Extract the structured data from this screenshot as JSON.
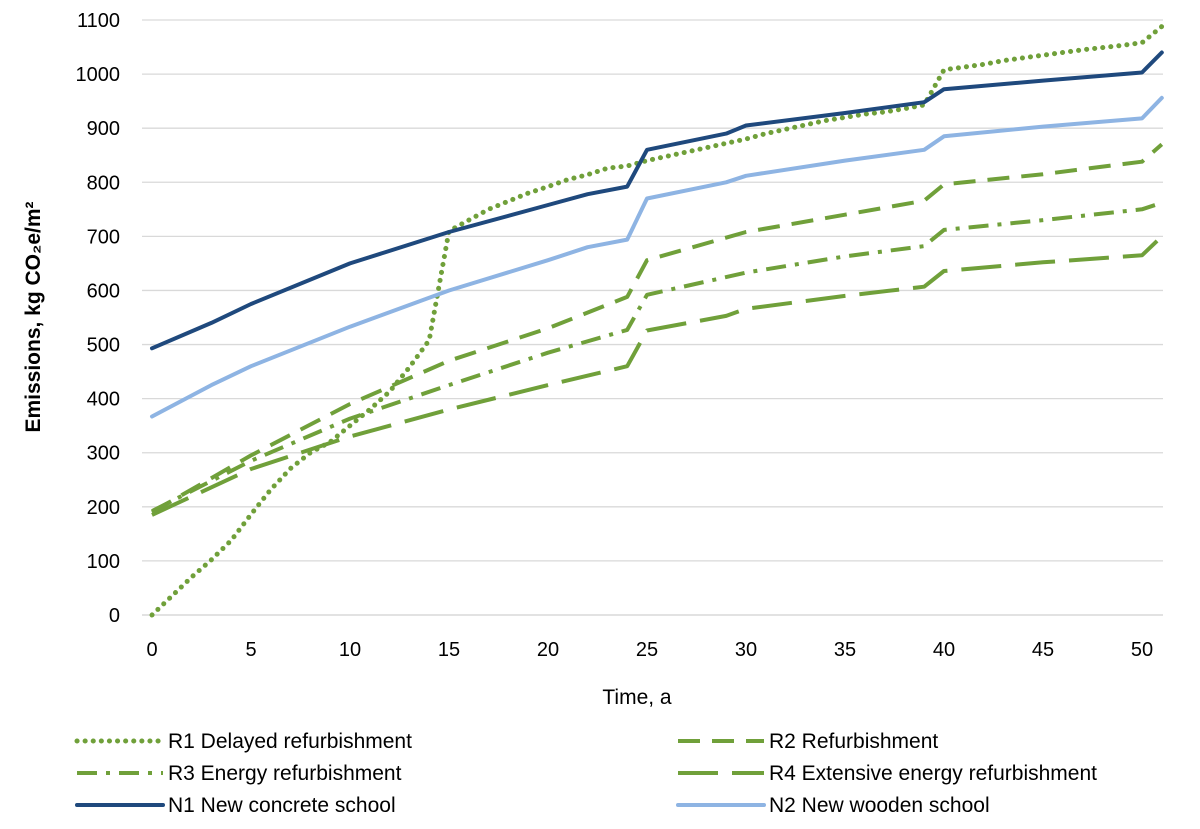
{
  "chart_data": {
    "type": "line",
    "xlabel": "Time, a",
    "ylabel": "Emissions, kg CO₂e/m²",
    "xlim": [
      0,
      51
    ],
    "ylim": [
      0,
      1100
    ],
    "x_ticks": [
      "0",
      "5",
      "10",
      "15",
      "20",
      "25",
      "30",
      "35",
      "40",
      "45",
      "50"
    ],
    "y_ticks": [
      "0",
      "100",
      "200",
      "300",
      "400",
      "500",
      "600",
      "700",
      "800",
      "900",
      "1000",
      "1100"
    ],
    "grid": "horizontal",
    "legend_position": "bottom",
    "series": [
      {
        "name": "R1 Delayed refurbishment",
        "color": "#70a03a",
        "dash": "dotted",
        "points": [
          [
            0,
            0
          ],
          [
            1,
            35
          ],
          [
            2,
            70
          ],
          [
            3,
            102
          ],
          [
            4,
            138
          ],
          [
            5,
            186
          ],
          [
            6,
            232
          ],
          [
            7,
            271
          ],
          [
            8,
            300
          ],
          [
            9,
            320
          ],
          [
            10,
            350
          ],
          [
            11,
            380
          ],
          [
            12,
            413
          ],
          [
            13,
            458
          ],
          [
            14,
            508
          ],
          [
            15,
            710
          ],
          [
            16,
            730
          ],
          [
            17,
            750
          ],
          [
            18,
            765
          ],
          [
            19,
            780
          ],
          [
            20,
            792
          ],
          [
            21,
            805
          ],
          [
            22,
            814
          ],
          [
            23,
            826
          ],
          [
            24,
            830
          ],
          [
            25,
            840
          ],
          [
            26,
            848
          ],
          [
            27,
            856
          ],
          [
            28,
            864
          ],
          [
            29,
            872
          ],
          [
            30,
            880
          ],
          [
            31,
            890
          ],
          [
            32,
            898
          ],
          [
            33,
            906
          ],
          [
            34,
            914
          ],
          [
            35,
            920
          ],
          [
            36,
            926
          ],
          [
            37,
            930
          ],
          [
            38,
            936
          ],
          [
            39,
            943
          ],
          [
            40,
            1008
          ],
          [
            41,
            1013
          ],
          [
            42,
            1018
          ],
          [
            43,
            1025
          ],
          [
            44,
            1030
          ],
          [
            45,
            1035
          ],
          [
            46,
            1040
          ],
          [
            47,
            1045
          ],
          [
            48,
            1049
          ],
          [
            49,
            1053
          ],
          [
            50,
            1058
          ],
          [
            51,
            1088
          ]
        ]
      },
      {
        "name": "R2 Refurbishment",
        "color": "#70a03a",
        "dash": "dash",
        "points": [
          [
            0,
            190
          ],
          [
            5,
            295
          ],
          [
            10,
            390
          ],
          [
            15,
            470
          ],
          [
            20,
            530
          ],
          [
            24,
            588
          ],
          [
            25,
            656
          ],
          [
            30,
            708
          ],
          [
            35,
            740
          ],
          [
            39,
            766
          ],
          [
            40,
            796
          ],
          [
            45,
            815
          ],
          [
            50,
            838
          ],
          [
            51,
            870
          ]
        ]
      },
      {
        "name": "R3 Energy refurbishment",
        "color": "#70a03a",
        "dash": "dashdot",
        "points": [
          [
            0,
            192
          ],
          [
            5,
            285
          ],
          [
            10,
            363
          ],
          [
            15,
            425
          ],
          [
            20,
            485
          ],
          [
            24,
            527
          ],
          [
            25,
            592
          ],
          [
            30,
            633
          ],
          [
            35,
            663
          ],
          [
            39,
            682
          ],
          [
            40,
            712
          ],
          [
            45,
            730
          ],
          [
            50,
            750
          ],
          [
            51,
            762
          ]
        ]
      },
      {
        "name": "R4 Extensive energy refurbishment",
        "color": "#70a03a",
        "dash": "longdash",
        "points": [
          [
            0,
            185
          ],
          [
            5,
            270
          ],
          [
            10,
            330
          ],
          [
            15,
            380
          ],
          [
            20,
            425
          ],
          [
            24,
            460
          ],
          [
            25,
            526
          ],
          [
            29,
            553
          ],
          [
            30,
            566
          ],
          [
            35,
            590
          ],
          [
            39,
            607
          ],
          [
            40,
            636
          ],
          [
            45,
            652
          ],
          [
            50,
            665
          ],
          [
            51,
            700
          ]
        ]
      },
      {
        "name": "N1 New concrete school",
        "color": "#1f497d",
        "dash": "solid",
        "points": [
          [
            0,
            493
          ],
          [
            3,
            540
          ],
          [
            5,
            575
          ],
          [
            10,
            650
          ],
          [
            15,
            708
          ],
          [
            20,
            758
          ],
          [
            22,
            778
          ],
          [
            24,
            792
          ],
          [
            25,
            860
          ],
          [
            29,
            890
          ],
          [
            30,
            905
          ],
          [
            35,
            928
          ],
          [
            39,
            948
          ],
          [
            40,
            972
          ],
          [
            45,
            988
          ],
          [
            50,
            1003
          ],
          [
            51,
            1040
          ]
        ]
      },
      {
        "name": "N2 New wooden school",
        "color": "#8eb4e3",
        "dash": "solid",
        "points": [
          [
            0,
            367
          ],
          [
            3,
            425
          ],
          [
            5,
            460
          ],
          [
            10,
            533
          ],
          [
            15,
            600
          ],
          [
            20,
            656
          ],
          [
            22,
            680
          ],
          [
            24,
            694
          ],
          [
            25,
            770
          ],
          [
            29,
            800
          ],
          [
            30,
            812
          ],
          [
            35,
            840
          ],
          [
            39,
            860
          ],
          [
            40,
            885
          ],
          [
            45,
            903
          ],
          [
            50,
            918
          ],
          [
            51,
            956
          ]
        ]
      }
    ]
  }
}
